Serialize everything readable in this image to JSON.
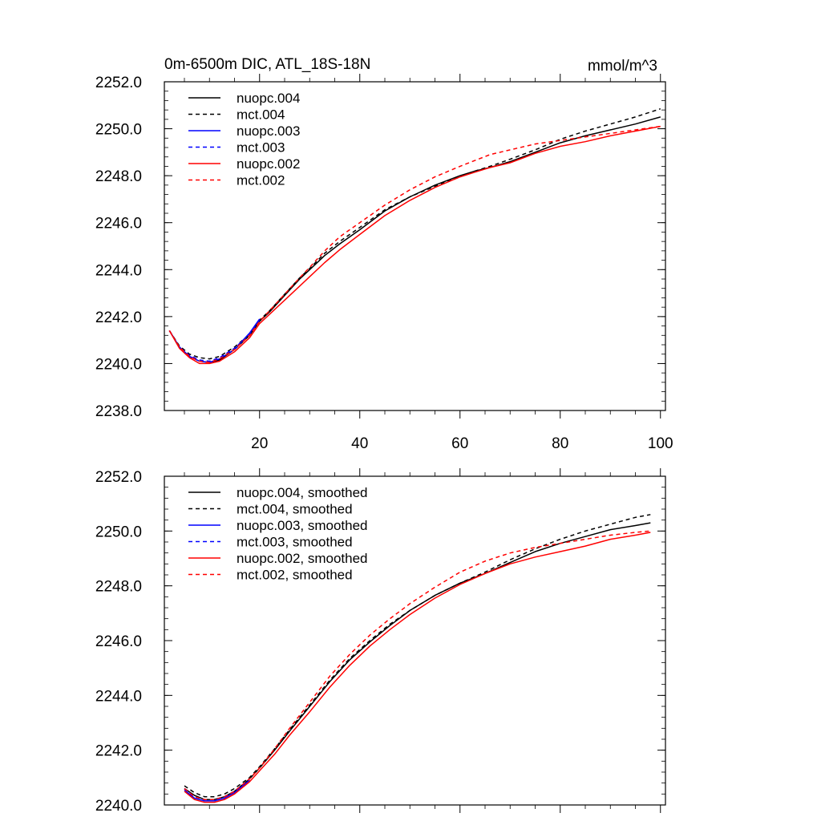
{
  "chart_data": [
    {
      "type": "line",
      "title": "0m-6500m DIC, ATL_18S-18N",
      "units": "mmol/m^3",
      "xlabel": "",
      "ylabel": "",
      "xlim": [
        1,
        101
      ],
      "ylim": [
        2238.0,
        2252.0
      ],
      "xticks": [
        20,
        40,
        60,
        80,
        100
      ],
      "yticks": [
        2238.0,
        2240.0,
        2242.0,
        2244.0,
        2246.0,
        2248.0,
        2250.0,
        2252.0
      ],
      "ytick_labels": [
        "2238.0",
        "2240.0",
        "2242.0",
        "2244.0",
        "2246.0",
        "2248.0",
        "2250.0",
        "2252.0"
      ],
      "legend_position": "top-left",
      "series": [
        {
          "name": "nuopc.004",
          "color": "#000000",
          "dash": "solid",
          "x": [
            2,
            4,
            6,
            8,
            10,
            12,
            15,
            18,
            20,
            22,
            25,
            28,
            30,
            33,
            36,
            40,
            45,
            50,
            55,
            60,
            63,
            66,
            70,
            75,
            80,
            85,
            90,
            95,
            100
          ],
          "y": [
            2241.4,
            2240.7,
            2240.3,
            2240.1,
            2240.05,
            2240.15,
            2240.6,
            2241.2,
            2241.8,
            2242.2,
            2242.9,
            2243.6,
            2244.0,
            2244.6,
            2245.1,
            2245.7,
            2246.5,
            2247.1,
            2247.6,
            2248.0,
            2248.2,
            2248.35,
            2248.6,
            2249.0,
            2249.4,
            2249.7,
            2249.95,
            2250.2,
            2250.5
          ]
        },
        {
          "name": "mct.004",
          "color": "#000000",
          "dash": "dashed",
          "x": [
            2,
            4,
            6,
            8,
            10,
            12,
            15,
            18,
            20,
            22,
            25,
            28,
            30,
            33,
            36,
            40,
            45,
            50,
            55,
            60,
            63,
            66,
            70,
            75,
            80,
            85,
            90,
            95,
            100
          ],
          "y": [
            2241.4,
            2240.75,
            2240.4,
            2240.25,
            2240.2,
            2240.3,
            2240.7,
            2241.25,
            2241.85,
            2242.25,
            2242.95,
            2243.65,
            2244.05,
            2244.7,
            2245.2,
            2245.8,
            2246.55,
            2247.1,
            2247.55,
            2247.95,
            2248.2,
            2248.4,
            2248.7,
            2249.1,
            2249.55,
            2249.9,
            2250.2,
            2250.5,
            2250.85
          ]
        },
        {
          "name": "nuopc.003",
          "color": "#0000ff",
          "dash": "solid",
          "x": [
            2,
            4,
            6,
            8,
            10,
            12,
            15,
            18,
            20
          ],
          "y": [
            2241.4,
            2240.7,
            2240.3,
            2240.1,
            2240.05,
            2240.2,
            2240.6,
            2241.3,
            2241.9
          ]
        },
        {
          "name": "mct.003",
          "color": "#0000ff",
          "dash": "dashed",
          "x": [
            2,
            4,
            6,
            8,
            10,
            12,
            15,
            18,
            20
          ],
          "y": [
            2241.4,
            2240.7,
            2240.35,
            2240.15,
            2240.1,
            2240.25,
            2240.65,
            2241.25,
            2241.85
          ]
        },
        {
          "name": "nuopc.002",
          "color": "#ff0000",
          "dash": "solid",
          "x": [
            2,
            4,
            6,
            8,
            10,
            12,
            15,
            18,
            20,
            22,
            25,
            28,
            30,
            33,
            36,
            40,
            45,
            50,
            55,
            60,
            63,
            66,
            70,
            75,
            80,
            85,
            90,
            95,
            100
          ],
          "y": [
            2241.4,
            2240.65,
            2240.25,
            2240.0,
            2240.0,
            2240.1,
            2240.5,
            2241.1,
            2241.7,
            2242.1,
            2242.7,
            2243.3,
            2243.7,
            2244.3,
            2244.85,
            2245.5,
            2246.3,
            2246.95,
            2247.5,
            2247.95,
            2248.15,
            2248.35,
            2248.55,
            2248.95,
            2249.25,
            2249.45,
            2249.7,
            2249.9,
            2250.1
          ]
        },
        {
          "name": "mct.002",
          "color": "#ff0000",
          "dash": "dashed",
          "x": [
            2,
            4,
            6,
            8,
            10,
            12,
            15,
            18,
            20,
            22,
            25,
            28,
            30,
            33,
            36,
            40,
            45,
            50,
            55,
            60,
            63,
            66,
            70,
            75,
            80,
            85,
            90,
            95,
            100
          ],
          "y": [
            2241.4,
            2240.7,
            2240.3,
            2240.1,
            2240.05,
            2240.2,
            2240.6,
            2241.2,
            2241.8,
            2242.25,
            2242.95,
            2243.65,
            2244.1,
            2244.8,
            2245.4,
            2246.0,
            2246.75,
            2247.4,
            2247.95,
            2248.4,
            2248.65,
            2248.9,
            2249.1,
            2249.35,
            2249.5,
            2249.65,
            2249.8,
            2249.95,
            2250.1
          ]
        }
      ]
    },
    {
      "type": "line",
      "title": "",
      "xlabel": "",
      "ylabel": "",
      "xlim": [
        1,
        101
      ],
      "ylim": [
        2240.0,
        2252.0
      ],
      "xticks": [
        20,
        40,
        60,
        80,
        100
      ],
      "yticks": [
        2240.0,
        2242.0,
        2244.0,
        2246.0,
        2248.0,
        2250.0,
        2252.0
      ],
      "ytick_labels": [
        "2240.0",
        "2242.0",
        "2244.0",
        "2246.0",
        "2248.0",
        "2250.0",
        "2252.0"
      ],
      "legend_position": "top-left",
      "series": [
        {
          "name": "nuopc.004, smoothed",
          "color": "#000000",
          "dash": "solid",
          "x": [
            5,
            7,
            9,
            11,
            13,
            15,
            18,
            20,
            23,
            26,
            30,
            34,
            38,
            42,
            46,
            50,
            55,
            60,
            65,
            70,
            75,
            80,
            85,
            90,
            95,
            98
          ],
          "y": [
            2240.6,
            2240.35,
            2240.2,
            2240.2,
            2240.3,
            2240.5,
            2240.95,
            2241.35,
            2242.0,
            2242.7,
            2243.6,
            2244.5,
            2245.3,
            2245.95,
            2246.55,
            2247.1,
            2247.65,
            2248.1,
            2248.45,
            2248.85,
            2249.25,
            2249.55,
            2249.8,
            2250.05,
            2250.2,
            2250.3
          ]
        },
        {
          "name": "mct.004, smoothed",
          "color": "#000000",
          "dash": "dashed",
          "x": [
            5,
            7,
            9,
            11,
            13,
            15,
            18,
            20,
            23,
            26,
            30,
            34,
            38,
            42,
            46,
            50,
            55,
            60,
            65,
            70,
            75,
            80,
            85,
            90,
            95,
            98
          ],
          "y": [
            2240.7,
            2240.45,
            2240.3,
            2240.3,
            2240.4,
            2240.6,
            2241.0,
            2241.4,
            2242.05,
            2242.75,
            2243.65,
            2244.55,
            2245.35,
            2246.0,
            2246.6,
            2247.1,
            2247.65,
            2248.1,
            2248.5,
            2248.95,
            2249.35,
            2249.7,
            2250.0,
            2250.25,
            2250.5,
            2250.6
          ]
        },
        {
          "name": "nuopc.003, smoothed",
          "color": "#0000ff",
          "dash": "solid",
          "x": [
            5,
            7,
            9,
            11,
            13,
            15,
            18
          ],
          "y": [
            2240.55,
            2240.25,
            2240.15,
            2240.15,
            2240.25,
            2240.45,
            2240.9
          ]
        },
        {
          "name": "mct.003, smoothed",
          "color": "#0000ff",
          "dash": "dashed",
          "x": [
            5,
            7,
            9,
            11,
            13,
            15,
            18
          ],
          "y": [
            2240.6,
            2240.3,
            2240.2,
            2240.2,
            2240.3,
            2240.5,
            2240.95
          ]
        },
        {
          "name": "nuopc.002, smoothed",
          "color": "#ff0000",
          "dash": "solid",
          "x": [
            5,
            7,
            9,
            11,
            13,
            15,
            18,
            20,
            23,
            26,
            30,
            34,
            38,
            42,
            46,
            50,
            55,
            60,
            65,
            70,
            75,
            80,
            85,
            90,
            95,
            98
          ],
          "y": [
            2240.5,
            2240.2,
            2240.1,
            2240.1,
            2240.2,
            2240.4,
            2240.85,
            2241.25,
            2241.85,
            2242.55,
            2243.4,
            2244.3,
            2245.1,
            2245.8,
            2246.4,
            2246.95,
            2247.55,
            2248.05,
            2248.45,
            2248.8,
            2249.05,
            2249.25,
            2249.45,
            2249.7,
            2249.85,
            2249.95
          ]
        },
        {
          "name": "mct.002, smoothed",
          "color": "#ff0000",
          "dash": "dashed",
          "x": [
            5,
            7,
            9,
            11,
            13,
            15,
            18,
            20,
            23,
            26,
            30,
            34,
            38,
            42,
            46,
            50,
            55,
            60,
            65,
            70,
            75,
            80,
            85,
            90,
            95,
            98
          ],
          "y": [
            2240.6,
            2240.3,
            2240.2,
            2240.2,
            2240.3,
            2240.5,
            2240.95,
            2241.35,
            2242.05,
            2242.8,
            2243.75,
            2244.7,
            2245.5,
            2246.2,
            2246.8,
            2247.35,
            2247.95,
            2248.5,
            2248.9,
            2249.2,
            2249.4,
            2249.55,
            2249.7,
            2249.85,
            2249.95,
            2250.0
          ]
        }
      ]
    }
  ]
}
